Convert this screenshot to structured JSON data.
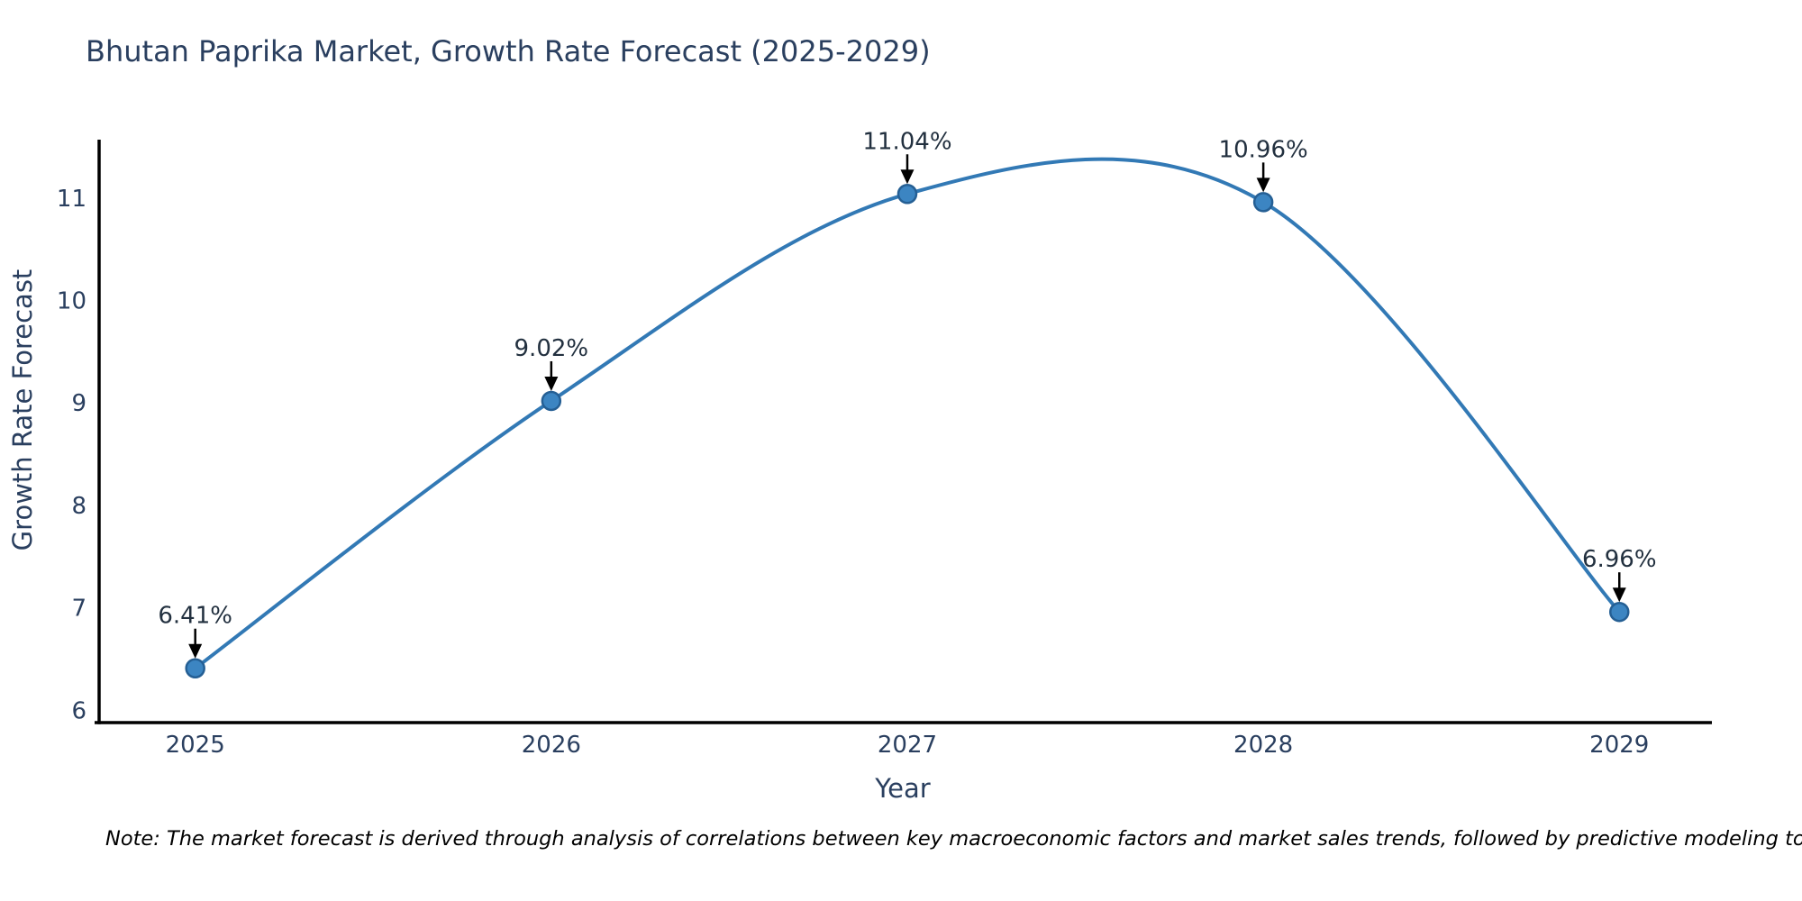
{
  "page": {
    "title": "Bhutan Paprika Market, Growth Rate Forecast (2025-2029)",
    "note": "Note: The market forecast is derived through analysis of correlations between key macroeconomic factors and market sales trends, followed by predictive modeling to project future sales."
  },
  "chart_data": {
    "type": "line",
    "title": "Bhutan Paprika Market, Growth Rate Forecast (2025-2029)",
    "xlabel": "Year",
    "ylabel": "Growth Rate Forecast",
    "x": [
      2025,
      2026,
      2027,
      2028,
      2029
    ],
    "values": [
      6.41,
      9.02,
      11.04,
      10.96,
      6.96
    ],
    "point_labels": [
      "6.41%",
      "9.02%",
      "11.04%",
      "10.96%",
      "6.96%"
    ],
    "xticks": [
      "2025",
      "2026",
      "2027",
      "2028",
      "2029"
    ],
    "yticks": [
      "6",
      "7",
      "8",
      "9",
      "10",
      "11"
    ],
    "xlim": [
      2024.73,
      2029.26
    ],
    "ylim": [
      5.88,
      11.57
    ],
    "line_shape": "spline",
    "grid": false,
    "legend": false,
    "colors": {
      "line": "#3279b5",
      "marker_fill": "#3c85c2",
      "marker_edge": "#255f94",
      "axis": "#000000",
      "tick_text": "#2a3f5f",
      "annotation_text": "#22303f",
      "arrow": "#000000"
    }
  }
}
